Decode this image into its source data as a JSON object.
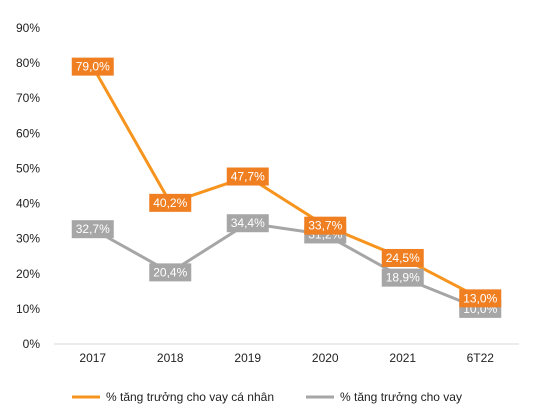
{
  "chart_data": {
    "type": "line",
    "categories": [
      "2017",
      "2018",
      "2019",
      "2020",
      "2021",
      "6T22"
    ],
    "y_ticks": [
      "0%",
      "10%",
      "20%",
      "30%",
      "40%",
      "50%",
      "60%",
      "70%",
      "80%",
      "90%"
    ],
    "ylim": [
      0,
      90
    ],
    "grid": false,
    "legend_position": "bottom",
    "series": [
      {
        "name": "% tăng trưởng cho vay cá nhân",
        "color": "#F7941D",
        "label_bg": "#F07F22",
        "values": [
          79.0,
          40.2,
          47.7,
          33.7,
          24.5,
          13.0
        ],
        "labels": [
          "79,0%",
          "40,2%",
          "47,7%",
          "33,7%",
          "24,5%",
          "13,0%"
        ]
      },
      {
        "name": "% tăng trưởng cho vay",
        "color": "#A6A6A6",
        "label_bg": "#A6A6A6",
        "values": [
          32.7,
          20.4,
          34.4,
          31.2,
          18.9,
          10.0
        ],
        "labels": [
          "32,7%",
          "20,4%",
          "34,4%",
          "31,2%",
          "18,9%",
          "10,0%"
        ]
      }
    ]
  }
}
